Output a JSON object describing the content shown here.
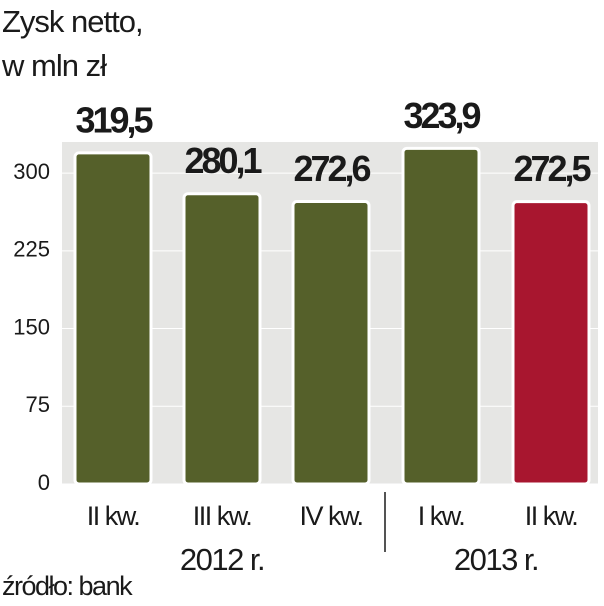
{
  "chart_data": {
    "type": "bar",
    "title": [
      "Zysk netto,",
      "w mln zł"
    ],
    "categories": [
      "II kw.",
      "III kw.",
      "IV kw.",
      "I kw.",
      "II kw."
    ],
    "values": [
      319.5,
      280.1,
      272.6,
      323.9,
      272.5
    ],
    "value_labels": [
      "319,5",
      "280,1",
      "272,6",
      "323,9",
      "272,5"
    ],
    "colors": [
      "#55602a",
      "#55602a",
      "#55602a",
      "#55602a",
      "#a8162f"
    ],
    "x_group_labels": [
      "2012 r.",
      "2013 r."
    ],
    "ylim": [
      0,
      330
    ],
    "yticks": [
      0,
      75,
      150,
      225,
      300
    ],
    "grid": true,
    "source": "źródło: bank"
  }
}
